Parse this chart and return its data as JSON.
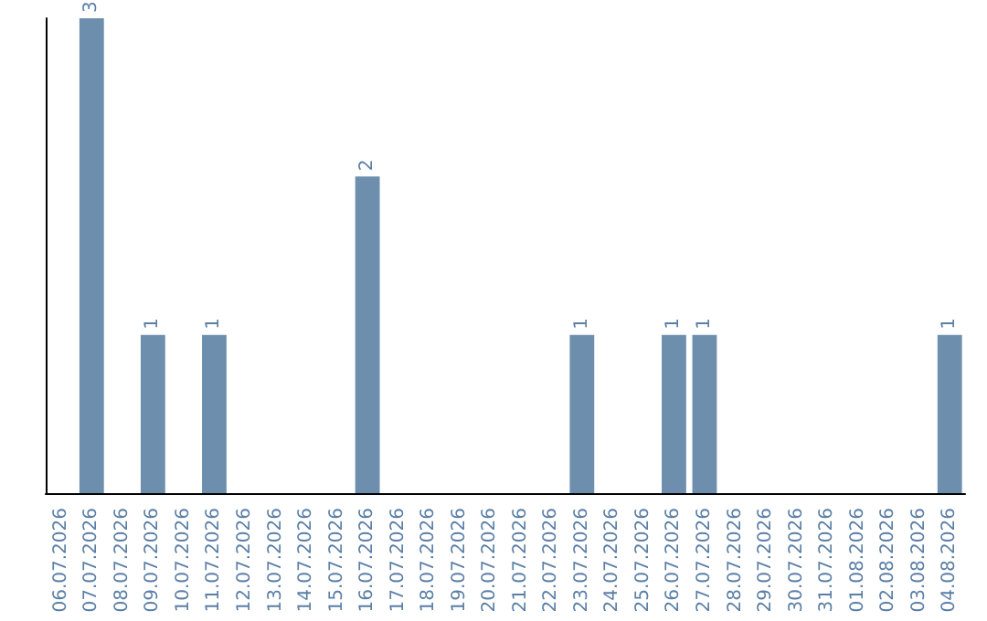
{
  "chart_data": {
    "type": "bar",
    "categories": [
      "06.07.2026",
      "07.07.2026",
      "08.07.2026",
      "09.07.2026",
      "10.07.2026",
      "11.07.2026",
      "12.07.2026",
      "13.07.2026",
      "14.07.2026",
      "15.07.2026",
      "16.07.2026",
      "17.07.2026",
      "18.07.2026",
      "19.07.2026",
      "20.07.2026",
      "21.07.2026",
      "22.07.2026",
      "23.07.2026",
      "24.07.2026",
      "25.07.2026",
      "26.07.2026",
      "27.07.2026",
      "28.07.2026",
      "29.07.2026",
      "30.07.2026",
      "31.07.2026",
      "01.08.2026",
      "02.08.2026",
      "03.08.2026",
      "04.08.2026"
    ],
    "values": [
      0,
      3,
      0,
      1,
      0,
      1,
      0,
      0,
      0,
      0,
      2,
      0,
      0,
      0,
      0,
      0,
      0,
      1,
      0,
      0,
      1,
      1,
      0,
      0,
      0,
      0,
      0,
      0,
      0,
      1
    ],
    "value_labels": [
      null,
      "3",
      null,
      "1",
      null,
      "1",
      null,
      null,
      null,
      null,
      "2",
      null,
      null,
      null,
      null,
      null,
      null,
      "1",
      null,
      null,
      "1",
      "1",
      null,
      null,
      null,
      null,
      null,
      null,
      null,
      "1"
    ],
    "color": "#6d8fad",
    "tick_labels": "x"
  }
}
